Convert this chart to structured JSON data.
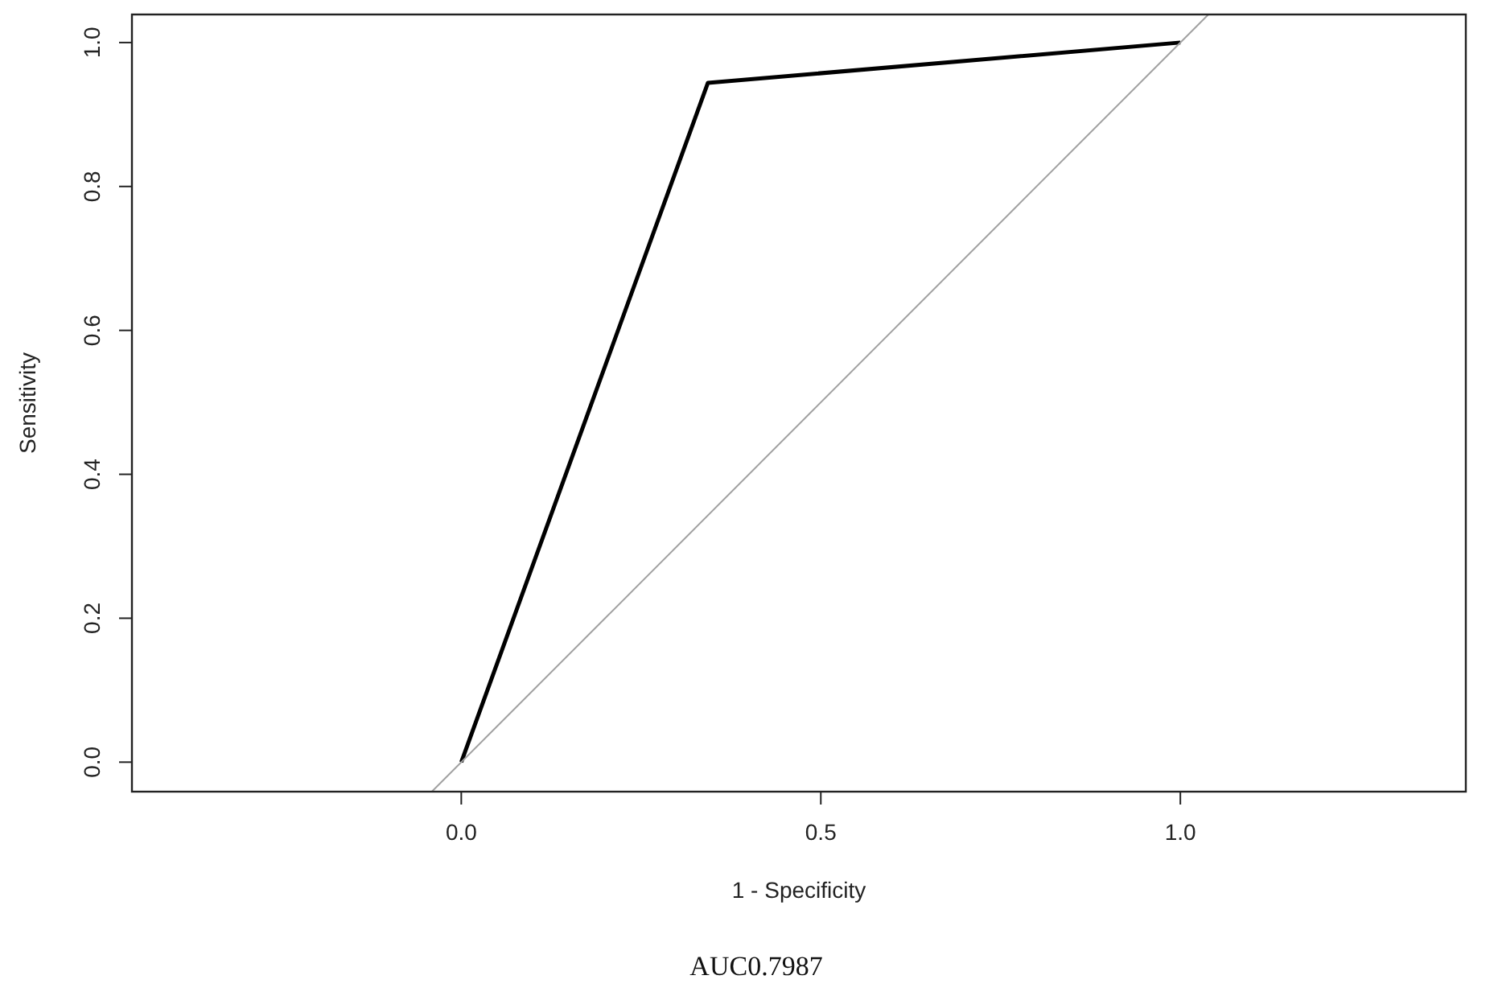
{
  "chart_data": {
    "type": "line",
    "xlabel": "1 - Specificity",
    "ylabel": "Sensitivity",
    "annotations": [
      "AUC0.7987"
    ],
    "xlim": [
      -0.458,
      1.397
    ],
    "ylim": [
      -0.041,
      1.039
    ],
    "xticks": [
      {
        "value": 0,
        "label": "0.0"
      },
      0.5,
      {
        "value": 1,
        "label": "1.0"
      }
    ],
    "yticks": [
      {
        "value": 0,
        "label": "0.0"
      },
      0.2,
      0.4,
      0.6,
      0.8,
      {
        "value": 1,
        "label": "1.0"
      }
    ],
    "grid": false,
    "series": [
      {
        "color": "#000000",
        "x": [
          0,
          0.343,
          1
        ],
        "values": [
          0,
          0.944,
          1
        ]
      },
      {
        "color": "#a0a0a0",
        "x": [
          -0.041,
          1.039
        ],
        "values": [
          -0.041,
          1.039
        ]
      }
    ]
  }
}
